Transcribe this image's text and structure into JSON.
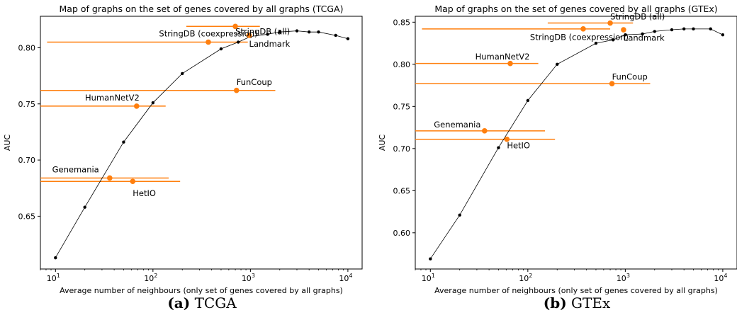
{
  "colors": {
    "network": "#ff7f0e",
    "baseline": "#000000"
  },
  "chart_data": [
    {
      "type": "scatter",
      "title": "Map of graphs on the set of genes covered by all graphs (TCGA)",
      "xlabel": "Average number of neighbours (only set of genes covered by all graphs)",
      "ylabel": "AUC",
      "xscale": "log",
      "xlim": [
        7,
        14000
      ],
      "ylim": [
        0.603,
        0.828
      ],
      "yticks": [
        0.65,
        0.7,
        0.75,
        0.8
      ],
      "ytick_labels": [
        "0.65",
        "0.70",
        "0.75",
        "0.80"
      ],
      "xticks": [
        10,
        100,
        1000,
        10000
      ],
      "caption_label": "(a)",
      "caption_text": "TCGA",
      "baseline": {
        "x": [
          10,
          20,
          50,
          100,
          200,
          500,
          750,
          1000,
          1500,
          2000,
          3000,
          4000,
          5000,
          7500,
          10000
        ],
        "y": [
          0.613,
          0.658,
          0.716,
          0.751,
          0.777,
          0.799,
          0.805,
          0.81,
          0.812,
          0.814,
          0.815,
          0.814,
          0.814,
          0.811,
          0.808
        ]
      },
      "networks": [
        {
          "name": "StringDB (all)",
          "x": 700,
          "y": 0.819,
          "xmin": 220,
          "xmax": 1250,
          "label_anchor": "start",
          "label_dx": 0,
          "label_dy": -0.0045
        },
        {
          "name": "StringDB (coexpression)",
          "x": 370,
          "y": 0.805,
          "xmin": 8.2,
          "xmax": 940,
          "label_anchor": "middle",
          "label_dx": 0,
          "label_dy": 0.0075
        },
        {
          "name": "Landmark",
          "x": 970,
          "y": 0.811,
          "xmin": 7,
          "xmax": 7,
          "label_anchor": "start",
          "label_dx": 0,
          "label_dy": -0.0075
        },
        {
          "name": "FunCoup",
          "x": 720,
          "y": 0.762,
          "xmin": 7,
          "xmax": 1800,
          "label_anchor": "start",
          "label_dx": 0,
          "label_dy": 0.0075
        },
        {
          "name": "HumanNetV2",
          "x": 68,
          "y": 0.748,
          "xmin": 7,
          "xmax": 135,
          "label_anchor": "middle",
          "label_dx": -0.25,
          "label_dy": 0.0075
        },
        {
          "name": "Genemania",
          "x": 36,
          "y": 0.684,
          "xmin": 7,
          "xmax": 145,
          "label_anchor": "middle",
          "label_dx": -0.35,
          "label_dy": 0.0075
        },
        {
          "name": "HetIO",
          "x": 62,
          "y": 0.681,
          "xmin": 7,
          "xmax": 190,
          "label_anchor": "start",
          "label_dx": 0,
          "label_dy": -0.0105
        }
      ]
    },
    {
      "type": "scatter",
      "title": "Map of graphs on the set of genes covered by all graphs (GTEx)",
      "xlabel": "Average number of neighbours (only set of genes covered by all graphs)",
      "ylabel": "AUC",
      "xscale": "log",
      "xlim": [
        7,
        14000
      ],
      "ylim": [
        0.557,
        0.857
      ],
      "yticks": [
        0.6,
        0.65,
        0.7,
        0.75,
        0.8,
        0.85
      ],
      "ytick_labels": [
        "0.60",
        "0.65",
        "0.70",
        "0.75",
        "0.80",
        "0.85"
      ],
      "xticks": [
        10,
        100,
        1000,
        10000
      ],
      "caption_label": "(b)",
      "caption_text": "GTEx",
      "baseline": {
        "x": [
          10,
          20,
          50,
          100,
          200,
          500,
          750,
          1000,
          1500,
          2000,
          3000,
          4000,
          5000,
          7500,
          10000
        ],
        "y": [
          0.569,
          0.621,
          0.701,
          0.757,
          0.8,
          0.825,
          0.829,
          0.835,
          0.836,
          0.839,
          0.841,
          0.842,
          0.842,
          0.842,
          0.835
        ]
      },
      "networks": [
        {
          "name": "StringDB (all)",
          "x": 700,
          "y": 0.849,
          "xmin": 160,
          "xmax": 1200,
          "label_anchor": "start",
          "label_dx": 0,
          "label_dy": 0.0075
        },
        {
          "name": "StringDB (coexpression)",
          "x": 370,
          "y": 0.842,
          "xmin": 8.2,
          "xmax": 700,
          "label_anchor": "middle",
          "label_dx": -0.04,
          "label_dy": -0.0098
        },
        {
          "name": "Landmark",
          "x": 960,
          "y": 0.841,
          "xmin": 7,
          "xmax": 7,
          "label_anchor": "start",
          "label_dx": 0,
          "label_dy": -0.0098
        },
        {
          "name": "HumanNetV2",
          "x": 66,
          "y": 0.801,
          "xmin": 7,
          "xmax": 128,
          "label_anchor": "middle",
          "label_dx": -0.08,
          "label_dy": 0.0083
        },
        {
          "name": "FunCoup",
          "x": 730,
          "y": 0.777,
          "xmin": 7,
          "xmax": 1800,
          "label_anchor": "start",
          "label_dx": 0,
          "label_dy": 0.0083
        },
        {
          "name": "Genemania",
          "x": 36,
          "y": 0.721,
          "xmin": 7,
          "xmax": 150,
          "label_anchor": "middle",
          "label_dx": -0.28,
          "label_dy": 0.0075
        },
        {
          "name": "HetIO",
          "x": 61,
          "y": 0.711,
          "xmin": 7,
          "xmax": 190,
          "label_anchor": "start",
          "label_dx": 0,
          "label_dy": -0.0075
        }
      ]
    }
  ]
}
